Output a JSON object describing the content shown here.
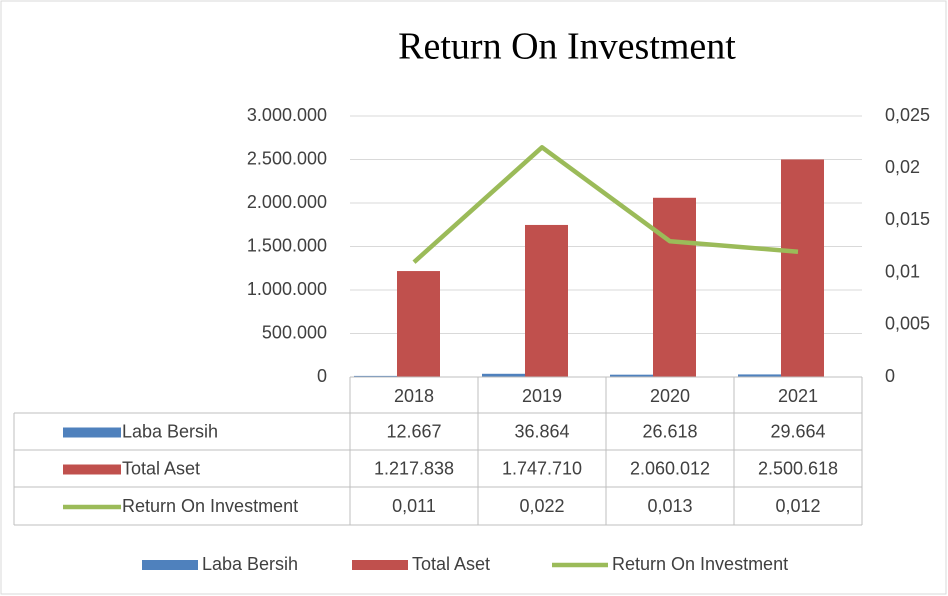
{
  "chart_data": {
    "type": "bar",
    "title": "Return On Investment",
    "categories": [
      "2018",
      "2019",
      "2020",
      "2021"
    ],
    "series": [
      {
        "name": "Laba Bersih",
        "color": "#4f81bd",
        "values": [
          12667,
          36864,
          26618,
          29664
        ],
        "value_labels": [
          "12.667",
          "36.864",
          "26.618",
          "29.664"
        ]
      },
      {
        "name": "Total Aset",
        "color": "#c0504d",
        "values": [
          1217838,
          1747710,
          2060012,
          2500618
        ],
        "value_labels": [
          "1.217.838",
          "1.747.710",
          "2.060.012",
          "2.500.618"
        ]
      },
      {
        "name": "Return On Investment",
        "type": "line",
        "axis": "y2",
        "color": "#9bbb59",
        "values": [
          0.011,
          0.022,
          0.013,
          0.012
        ],
        "value_labels": [
          "0,011",
          "0,022",
          "0,013",
          "0,012"
        ]
      }
    ],
    "ylim": [
      0,
      3000000
    ],
    "yticks": [
      0,
      {
        "value": 500000,
        "label": "500.000"
      },
      {
        "value": 1000000,
        "label": "1.000.000"
      },
      {
        "value": 1500000,
        "label": "1.500.000"
      },
      {
        "value": 2000000,
        "label": "2.000.000"
      },
      {
        "value": 2500000,
        "label": "2.500.000"
      },
      {
        "value": 3000000,
        "label": "3.000.000"
      }
    ],
    "y2lim": [
      0,
      0.025
    ],
    "y2ticks": [
      0,
      {
        "value": 0.005,
        "label": "0,005"
      },
      {
        "value": 0.01,
        "label": "0,01"
      },
      {
        "value": 0.015,
        "label": "0,015"
      },
      {
        "value": 0.02,
        "label": "0,02"
      },
      {
        "value": 0.025,
        "label": "0,025"
      }
    ],
    "grid": true,
    "legend": "bottom"
  }
}
